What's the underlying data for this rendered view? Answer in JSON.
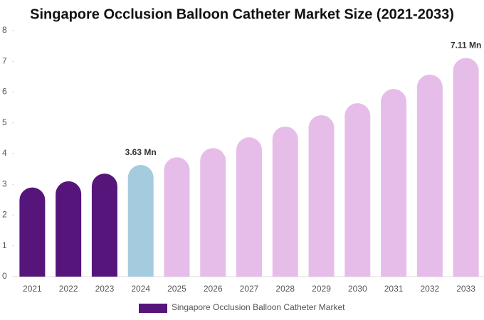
{
  "chart_data": {
    "type": "bar",
    "title": "Singapore Occlusion Balloon Catheter Market Size (2021-2033)",
    "categories": [
      "2021",
      "2022",
      "2023",
      "2024",
      "2025",
      "2026",
      "2027",
      "2028",
      "2029",
      "2030",
      "2031",
      "2032",
      "2033"
    ],
    "series": [
      {
        "name": "Singapore Occlusion Balloon Catheter Market",
        "color": "#56157a",
        "values": [
          2.9,
          3.1,
          3.35,
          3.63,
          3.88,
          4.18,
          4.53,
          4.88,
          5.25,
          5.64,
          6.1,
          6.57,
          7.11
        ],
        "colors": [
          "#56157a",
          "#56157a",
          "#56157a",
          "#a5cbdf",
          "#e6bde8",
          "#e6bde8",
          "#e6bde8",
          "#e6bde8",
          "#e6bde8",
          "#e6bde8",
          "#e6bde8",
          "#e6bde8",
          "#e6bde8"
        ],
        "value_labels": [
          null,
          null,
          null,
          "3.63 Mn",
          null,
          null,
          null,
          null,
          null,
          null,
          null,
          null,
          "7.11 Mn"
        ]
      }
    ],
    "ylim": [
      0,
      8
    ],
    "yticks": [
      0,
      1,
      2,
      3,
      4,
      5,
      6,
      7,
      8
    ]
  }
}
